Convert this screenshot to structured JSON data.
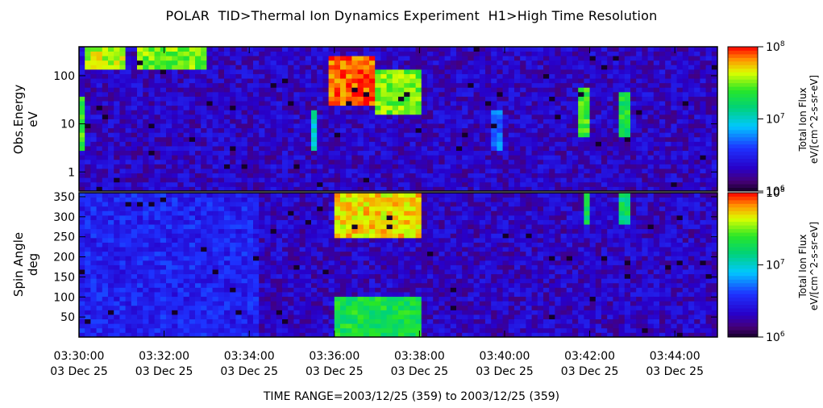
{
  "title": "POLAR  TID>Thermal Ion Dynamics Experiment  H1>High Time Resolution",
  "time_range": "TIME RANGE=2003/12/25 (359) to 2003/12/25 (359)",
  "chart_data": [
    {
      "type": "heatmap",
      "name": "energy-spectrogram",
      "ylabel": "Obs.Energy",
      "yunit": "eV",
      "yscale": "log",
      "ylim": [
        0.4,
        400
      ],
      "yticks": [
        1,
        10,
        100
      ],
      "ytick_labels": [
        "1",
        "10",
        "100"
      ],
      "xlim": [
        "03:30:00",
        "03:45:00"
      ],
      "xticks": [
        "03:30:00",
        "03:32:00",
        "03:34:00",
        "03:36:00",
        "03:38:00",
        "03:40:00",
        "03:42:00",
        "03:44:00"
      ],
      "xtick_dates": [
        "03 Dec 25",
        "03 Dec 25",
        "03 Dec 25",
        "03 Dec 25",
        "03 Dec 25",
        "03 Dec 25",
        "03 Dec 25",
        "03 Dec 25"
      ],
      "colorbar": {
        "label": "Total Ion Flux",
        "unit": "eV/[cm^2-s-sr-eV]",
        "scale": "log",
        "range": [
          1000000.0,
          100000000.0
        ],
        "tick_exponents": [
          6,
          7,
          8
        ]
      },
      "features": [
        {
          "time": "03:30:00",
          "duration_s": 10,
          "energy_eV": [
            3,
            40
          ],
          "log10_flux": 7.4
        },
        {
          "time": "03:30:07",
          "duration_s": 55,
          "energy_eV": [
            150,
            400
          ],
          "log10_flux": 7.6
        },
        {
          "time": "03:31:25",
          "duration_s": 95,
          "energy_eV": [
            150,
            400
          ],
          "log10_flux": 7.5
        },
        {
          "time": "03:35:55",
          "duration_s": 60,
          "energy_eV": [
            25,
            250
          ],
          "log10_flux": 7.9
        },
        {
          "time": "03:36:55",
          "duration_s": 70,
          "energy_eV": [
            15,
            150
          ],
          "log10_flux": 7.5
        },
        {
          "time": "03:35:25",
          "duration_s": 10,
          "energy_eV": [
            3,
            20
          ],
          "log10_flux": 7.0
        },
        {
          "time": "03:39:45",
          "duration_s": 12,
          "energy_eV": [
            3,
            20
          ],
          "log10_flux": 6.7
        },
        {
          "time": "03:41:47",
          "duration_s": 15,
          "energy_eV": [
            5,
            60
          ],
          "log10_flux": 7.4
        },
        {
          "time": "03:42:45",
          "duration_s": 15,
          "energy_eV": [
            5,
            50
          ],
          "log10_flux": 7.3
        }
      ]
    },
    {
      "type": "heatmap",
      "name": "pitch-angle-spectrogram",
      "ylabel": "Spin Angle",
      "yunit": "deg",
      "yscale": "linear",
      "ylim": [
        0,
        360
      ],
      "yticks": [
        50,
        100,
        150,
        200,
        250,
        300,
        350
      ],
      "ytick_labels": [
        "50",
        "100",
        "150",
        "200",
        "250",
        "300",
        "350"
      ],
      "xlim": [
        "03:30:00",
        "03:45:00"
      ],
      "colorbar": {
        "label": "Total Ion Flux",
        "unit": "eV/[cm^2-s-sr-eV]",
        "scale": "log",
        "range": [
          1000000.0,
          100000000.0
        ],
        "tick_exponents": [
          6,
          7,
          8
        ]
      },
      "features": [
        {
          "time": "03:30:00",
          "duration_s": 250,
          "angle_deg": [
            0,
            360
          ],
          "log10_flux": 6.5
        },
        {
          "time": "03:36:00",
          "duration_s": 120,
          "angle_deg": [
            250,
            360
          ],
          "log10_flux": 7.7
        },
        {
          "time": "03:36:00",
          "duration_s": 120,
          "angle_deg": [
            0,
            100
          ],
          "log10_flux": 7.3
        },
        {
          "time": "03:41:52",
          "duration_s": 12,
          "angle_deg": [
            280,
            360
          ],
          "log10_flux": 7.2
        },
        {
          "time": "03:42:45",
          "duration_s": 12,
          "angle_deg": [
            280,
            360
          ],
          "log10_flux": 7.2
        }
      ]
    }
  ]
}
